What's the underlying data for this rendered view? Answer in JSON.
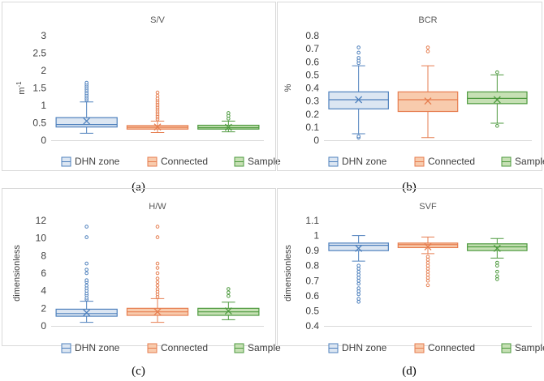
{
  "colors": {
    "blue": "#4F81BD",
    "blue_fill": "#DCE6F2",
    "orange": "#E67E50",
    "orange_fill": "#F8CBAD",
    "green": "#4E9A3F",
    "green_fill": "#C6E0B4",
    "panel_border": "#D9D9D9",
    "grid": "#D9D9D9"
  },
  "chart_data": [
    {
      "type": "boxplot",
      "title": "S/V",
      "caption": "(a)",
      "ylabel": "m",
      "ylabel_sup": "-1",
      "ylim": [
        0,
        3
      ],
      "yticks": [
        "0",
        "0.5",
        "1",
        "1.5",
        "2",
        "2.5",
        "3"
      ],
      "ytick_values": [
        0,
        0.5,
        1,
        1.5,
        2,
        2.5,
        3
      ],
      "grid": false,
      "legend_position": "bottom",
      "series": [
        {
          "name": "DHN zone",
          "color": "blue",
          "whisker_low": 0.2,
          "q1": 0.38,
          "median": 0.45,
          "q3": 0.65,
          "whisker_high": 1.1,
          "mean": 0.55,
          "outliers": [
            1.15,
            1.2,
            1.25,
            1.3,
            1.35,
            1.4,
            1.45,
            1.5,
            1.55,
            1.6,
            1.65
          ]
        },
        {
          "name": "Connected",
          "color": "orange",
          "whisker_low": 0.22,
          "q1": 0.32,
          "median": 0.37,
          "q3": 0.42,
          "whisker_high": 0.55,
          "mean": 0.38,
          "outliers": [
            0.6,
            0.65,
            0.7,
            0.75,
            0.8,
            0.85,
            0.9,
            0.95,
            1.0,
            1.05,
            1.1,
            1.15,
            1.2,
            1.28,
            1.37
          ]
        },
        {
          "name": "Sample",
          "color": "green",
          "whisker_low": 0.24,
          "q1": 0.32,
          "median": 0.36,
          "q3": 0.43,
          "whisker_high": 0.55,
          "mean": 0.37,
          "outliers": [
            0.62,
            0.7,
            0.78
          ]
        }
      ]
    },
    {
      "type": "boxplot",
      "title": "BCR",
      "caption": "(b)",
      "ylabel": "%",
      "ylabel_sup": "",
      "ylim": [
        0,
        0.8
      ],
      "yticks": [
        "0",
        "0.1",
        "0.2",
        "0.3",
        "0.4",
        "0.5",
        "0.6",
        "0.7",
        "0.8"
      ],
      "ytick_values": [
        0,
        0.1,
        0.2,
        0.3,
        0.4,
        0.5,
        0.6,
        0.7,
        0.8
      ],
      "grid": false,
      "legend_position": "bottom",
      "series": [
        {
          "name": "DHN zone",
          "color": "blue",
          "whisker_low": 0.05,
          "q1": 0.24,
          "median": 0.31,
          "q3": 0.37,
          "whisker_high": 0.57,
          "mean": 0.31,
          "outliers": [
            0.02,
            0.03,
            0.59,
            0.61,
            0.63,
            0.67,
            0.71
          ]
        },
        {
          "name": "Connected",
          "color": "orange",
          "whisker_low": 0.02,
          "q1": 0.22,
          "median": 0.31,
          "q3": 0.37,
          "whisker_high": 0.57,
          "mean": 0.3,
          "outliers": [
            0.68,
            0.71
          ]
        },
        {
          "name": "Sample",
          "color": "green",
          "whisker_low": 0.13,
          "q1": 0.28,
          "median": 0.32,
          "q3": 0.37,
          "whisker_high": 0.5,
          "mean": 0.31,
          "outliers": [
            0.11,
            0.52
          ]
        }
      ]
    },
    {
      "type": "boxplot",
      "title": "H/W",
      "caption": "(c)",
      "ylabel": "dimensionless",
      "ylabel_sup": "",
      "ylim": [
        0,
        12
      ],
      "yticks": [
        "0",
        "2",
        "4",
        "6",
        "8",
        "10",
        "12"
      ],
      "ytick_values": [
        0,
        2,
        4,
        6,
        8,
        10,
        12
      ],
      "grid": false,
      "legend_position": "bottom",
      "series": [
        {
          "name": "DHN zone",
          "color": "blue",
          "whisker_low": 0.4,
          "q1": 1.1,
          "median": 1.4,
          "q3": 1.9,
          "whisker_high": 2.8,
          "mean": 1.5,
          "outliers": [
            3.0,
            3.2,
            3.5,
            3.7,
            4.0,
            4.3,
            4.6,
            5.0,
            5.2,
            6.0,
            6.4,
            7.1,
            10.1,
            11.3
          ]
        },
        {
          "name": "Connected",
          "color": "orange",
          "whisker_low": 0.4,
          "q1": 1.2,
          "median": 1.6,
          "q3": 2.0,
          "whisker_high": 3.1,
          "mean": 1.6,
          "outliers": [
            3.3,
            3.6,
            3.9,
            4.2,
            4.6,
            5.0,
            5.4,
            6.0,
            6.6,
            7.1,
            10.1,
            11.3
          ]
        },
        {
          "name": "Sample",
          "color": "green",
          "whisker_low": 0.7,
          "q1": 1.2,
          "median": 1.6,
          "q3": 2.0,
          "whisker_high": 2.7,
          "mean": 1.7,
          "outliers": [
            3.4,
            3.8,
            4.2
          ]
        }
      ]
    },
    {
      "type": "boxplot",
      "title": "SVF",
      "caption": "(d)",
      "ylabel": "dimensionless",
      "ylabel_sup": "",
      "ylim": [
        0.4,
        1.1
      ],
      "yticks": [
        "0.4",
        "0.5",
        "0.6",
        "0.7",
        "0.8",
        "0.9",
        "1",
        "1.1"
      ],
      "ytick_values": [
        0.4,
        0.5,
        0.6,
        0.7,
        0.8,
        0.9,
        1.0,
        1.1
      ],
      "grid": false,
      "legend_position": "bottom",
      "series": [
        {
          "name": "DHN zone",
          "color": "blue",
          "whisker_low": 0.83,
          "q1": 0.9,
          "median": 0.935,
          "q3": 0.95,
          "whisker_high": 1.0,
          "mean": 0.915,
          "outliers": [
            0.56,
            0.58,
            0.61,
            0.63,
            0.65,
            0.68,
            0.7,
            0.72,
            0.74,
            0.76,
            0.78,
            0.8
          ]
        },
        {
          "name": "Connected",
          "color": "orange",
          "whisker_low": 0.88,
          "q1": 0.92,
          "median": 0.94,
          "q3": 0.95,
          "whisker_high": 0.99,
          "mean": 0.925,
          "outliers": [
            0.67,
            0.7,
            0.72,
            0.74,
            0.76,
            0.78,
            0.8,
            0.82,
            0.84,
            0.86
          ]
        },
        {
          "name": "Sample",
          "color": "green",
          "whisker_low": 0.85,
          "q1": 0.9,
          "median": 0.925,
          "q3": 0.945,
          "whisker_high": 0.98,
          "mean": 0.915,
          "outliers": [
            0.71,
            0.73,
            0.76,
            0.8,
            0.82
          ]
        }
      ]
    }
  ]
}
